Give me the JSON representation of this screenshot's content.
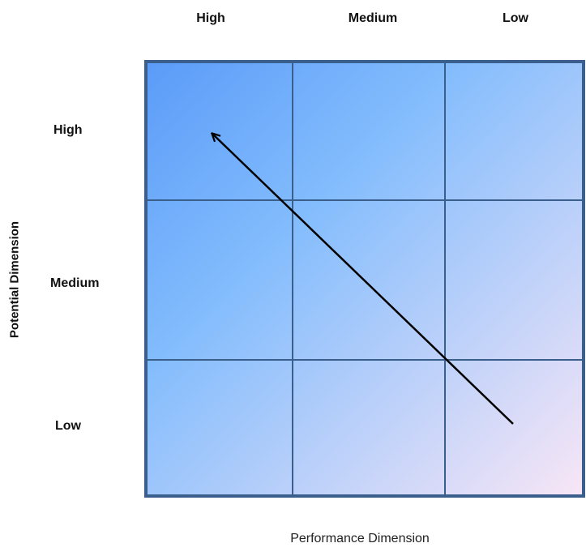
{
  "columns": [
    "High",
    "Medium",
    "Low"
  ],
  "rows": [
    "High",
    "Medium",
    "Low"
  ],
  "y_axis_title": "Potential Dimension",
  "x_axis_title": "Performance Dimension",
  "colors": {
    "grid_border": "#3a5f8c",
    "gradient_start": "#5b9bf8",
    "gradient_mid": "#82bcfd",
    "gradient_end": "#f8e6f6",
    "arrow": "#000000"
  }
}
